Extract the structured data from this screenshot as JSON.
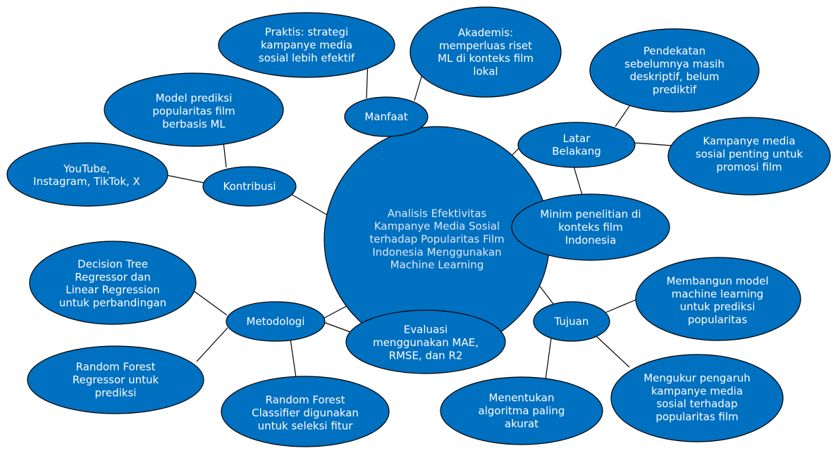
{
  "colors": {
    "bubble_fill": "#0070C0",
    "bubble_stroke": "#000000",
    "text": "#FFFFFF",
    "center_text": "#DFE9F7",
    "connector": "#000000"
  },
  "nodes": {
    "center": {
      "lines": [
        "Analisis Efektivitas",
        "Kampanye Media Sosial",
        "terhadap Popularitas Film",
        "Indonesia Menggunakan",
        "Machine Learning"
      ]
    },
    "manfaat": {
      "lines": [
        "Manfaat"
      ]
    },
    "praktis": {
      "lines": [
        "Praktis: strategi",
        "kampanye media",
        "sosial lebih efektif"
      ]
    },
    "akademis": {
      "lines": [
        "Akademis:",
        "memperluas riset",
        "ML di konteks film",
        "lokal"
      ]
    },
    "latar_belakang": {
      "lines": [
        "Latar",
        "Belakang"
      ]
    },
    "pendekatan": {
      "lines": [
        "Pendekatan",
        "sebelumnya masih",
        "deskriptif, belum",
        "prediktif"
      ]
    },
    "kampanye_penting": {
      "lines": [
        "Kampanye media",
        "sosial penting untuk",
        "promosi film"
      ]
    },
    "minim_penelitian": {
      "lines": [
        "Minim penelitian di",
        "konteks film",
        "Indonesia"
      ]
    },
    "kontribusi": {
      "lines": [
        "Kontribusi"
      ]
    },
    "model_prediksi": {
      "lines": [
        "Model prediksi",
        "popularitas film",
        "berbasis ML"
      ]
    },
    "platform": {
      "lines": [
        "YouTube,",
        "Instagram, TikTok, X"
      ]
    },
    "metodologi": {
      "lines": [
        "Metodologi"
      ]
    },
    "decision_tree": {
      "lines": [
        "Decision Tree",
        "Regressor dan",
        "Linear Regression",
        "untuk perbandingan"
      ]
    },
    "rf_regressor": {
      "lines": [
        "Random Forest",
        "Regressor untuk",
        "prediksi"
      ]
    },
    "rf_classifier": {
      "lines": [
        "Random Forest",
        "Classifier digunakan",
        "untuk seleksi fitur"
      ]
    },
    "evaluasi": {
      "lines": [
        "Evaluasi",
        "menggunakan MAE,",
        "RMSE, dan R2"
      ]
    },
    "tujuan": {
      "lines": [
        "Tujuan"
      ]
    },
    "membangun_model": {
      "lines": [
        "Membangun model",
        "machine learning",
        "untuk prediksi",
        "popularitas"
      ]
    },
    "mengukur_pengaruh": {
      "lines": [
        "Mengukur pengaruh",
        "kampanye media",
        "sosial terhadap",
        "popularitas film"
      ]
    },
    "menentukan_algoritma": {
      "lines": [
        "Menentukan",
        "algoritma paling",
        "akurat"
      ]
    }
  }
}
